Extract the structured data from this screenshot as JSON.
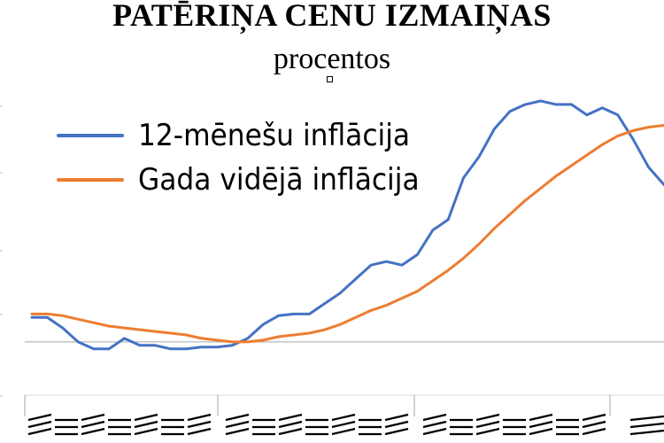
{
  "chart_data": {
    "type": "line",
    "title": "PATĒRIŅA CENU IZMAIŅAS",
    "subtitle": "procentos",
    "xlabel": "",
    "ylabel": "",
    "legend_placement": "top-left",
    "grid": false,
    "series": [
      {
        "name": "12-mēnešu inflācija",
        "color": "#4472C4",
        "values": [
          0.7,
          0.7,
          0.4,
          0.0,
          -0.2,
          -0.2,
          0.1,
          -0.1,
          -0.1,
          -0.2,
          -0.2,
          -0.15,
          -0.15,
          -0.1,
          0.1,
          0.5,
          0.75,
          0.8,
          0.8,
          1.1,
          1.4,
          1.8,
          2.2,
          2.3,
          2.2,
          2.5,
          3.2,
          3.5,
          4.7,
          5.3,
          6.1,
          6.6,
          6.8,
          6.9,
          6.8,
          6.8,
          6.5,
          6.7,
          6.5,
          5.8,
          5.0,
          4.5
        ]
      },
      {
        "name": "Gada vidējā inflācija",
        "color": "#ED7D31",
        "values": [
          0.8,
          0.8,
          0.75,
          0.65,
          0.55,
          0.45,
          0.4,
          0.35,
          0.3,
          0.25,
          0.2,
          0.1,
          0.05,
          0.0,
          0.0,
          0.05,
          0.15,
          0.2,
          0.25,
          0.35,
          0.5,
          0.7,
          0.9,
          1.05,
          1.25,
          1.45,
          1.75,
          2.05,
          2.4,
          2.8,
          3.25,
          3.65,
          4.05,
          4.4,
          4.75,
          5.05,
          5.35,
          5.65,
          5.9,
          6.05,
          6.15,
          6.2
        ]
      }
    ],
    "ylim": [
      -1.5,
      7.0
    ]
  }
}
